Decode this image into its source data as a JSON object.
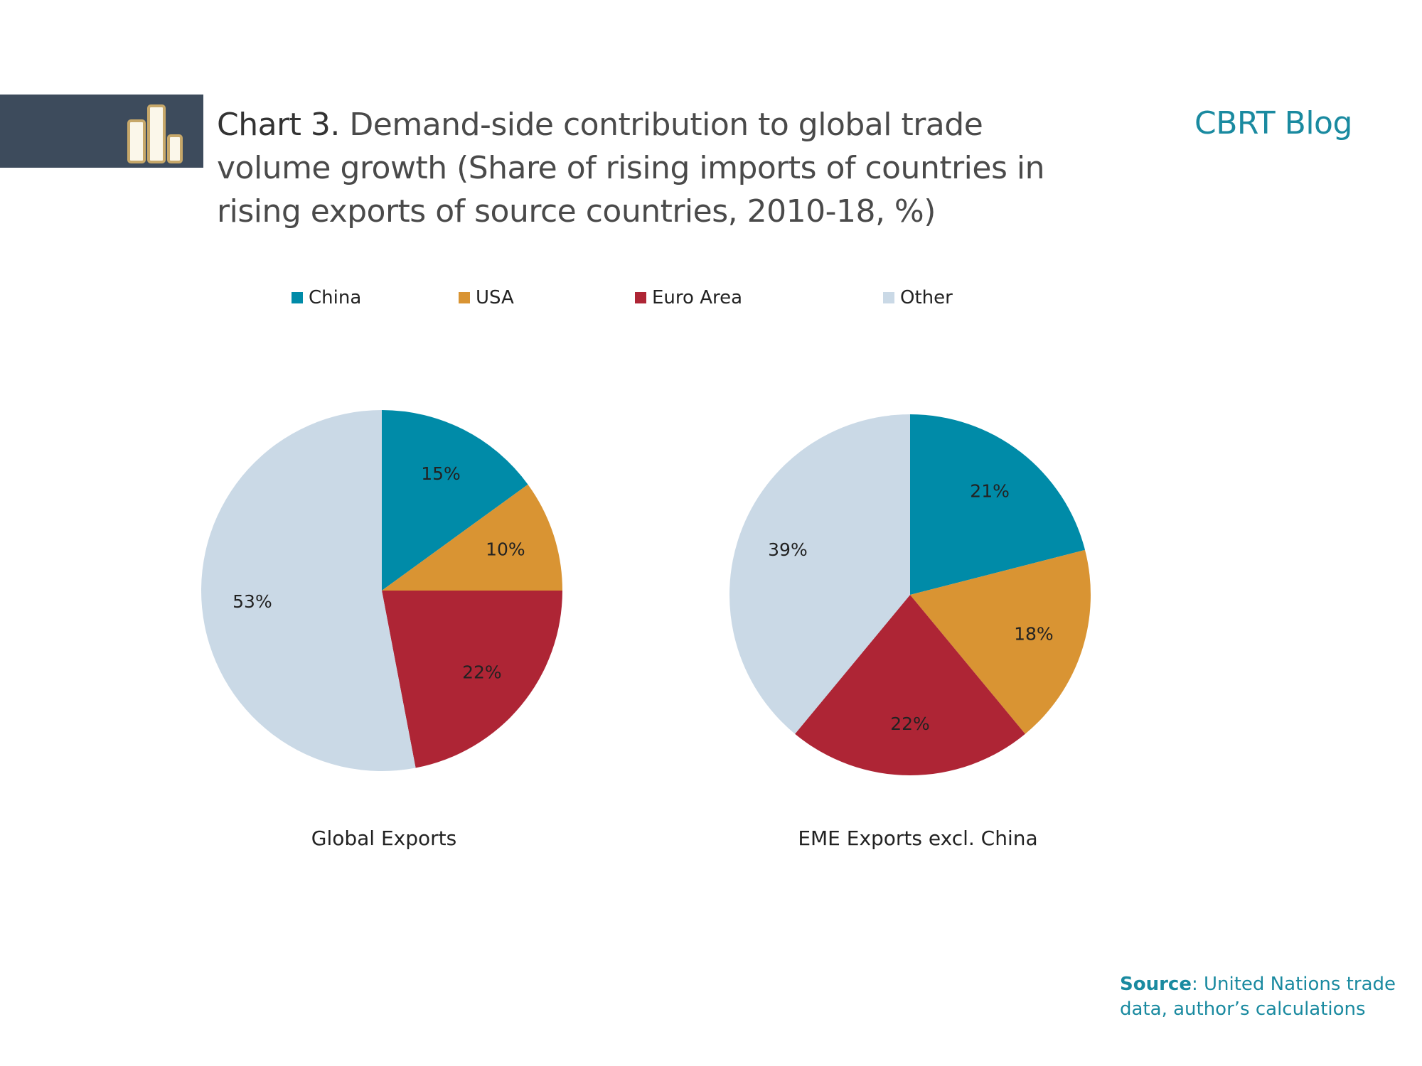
{
  "header": {
    "title_lead": "Chart 3.",
    "title_rest": " Demand-side contribution to global trade volume growth (Share of rising imports of countries in rising exports of source countries, 2010-18, %)",
    "blog_name": "CBRT Blog",
    "logo_icon": "bar-chart-icon"
  },
  "colors": {
    "band": "#3d4b5c",
    "china": "#008ba8",
    "usa": "#d99433",
    "euro_area": "#ae2535",
    "other": "#cad9e6",
    "accent_text": "#1a8aa0",
    "logo_fill": "#fbf7ea",
    "logo_stroke": "#c7a86a"
  },
  "legend": {
    "items": [
      {
        "label": "China",
        "color": "#008ba8"
      },
      {
        "label": "USA",
        "color": "#d99433"
      },
      {
        "label": "Euro Area",
        "color": "#ae2535"
      },
      {
        "label": "Other",
        "color": "#cad9e6"
      }
    ]
  },
  "chart_data": [
    {
      "type": "pie",
      "title": "Global Exports",
      "categories": [
        "China",
        "USA",
        "Euro Area",
        "Other"
      ],
      "values": [
        15,
        10,
        22,
        53
      ],
      "labels": [
        "15%",
        "10%",
        "22%",
        "53%"
      ]
    },
    {
      "type": "pie",
      "title": "EME Exports excl. China",
      "categories": [
        "China",
        "USA",
        "Euro Area",
        "Other"
      ],
      "values": [
        21,
        18,
        22,
        39
      ],
      "labels": [
        "21%",
        "18%",
        "22%",
        "39%"
      ]
    }
  ],
  "source": {
    "label": "Source",
    "text": ": United Nations trade data, author’s calculations"
  }
}
